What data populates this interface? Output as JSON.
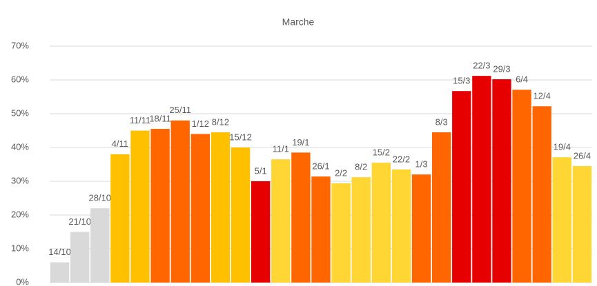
{
  "chart_data": {
    "type": "bar",
    "title": "Marche",
    "categories": [
      "14/10",
      "21/10",
      "28/10",
      "4/11",
      "11/11",
      "18/11",
      "25/11",
      "1/12",
      "8/12",
      "15/12",
      "5/1",
      "11/1",
      "19/1",
      "26/1",
      "2/2",
      "8/2",
      "15/2",
      "22/2",
      "1/3",
      "8/3",
      "15/3",
      "22/3",
      "29/3",
      "6/4",
      "12/4",
      "19/4",
      "26/4"
    ],
    "values": [
      6,
      15,
      22,
      38,
      45,
      45.5,
      48,
      44,
      44.5,
      40,
      30,
      36.5,
      38.5,
      31.4,
      29.4,
      31.2,
      35.5,
      33.5,
      32,
      44.5,
      56.7,
      61.2,
      60.2,
      57.1,
      52.2,
      37.1,
      34.5
    ],
    "colors": [
      "#d9d9d9",
      "#d9d9d9",
      "#d9d9d9",
      "#ffc000",
      "#ffc000",
      "#ff6600",
      "#ff6600",
      "#ff6600",
      "#ffc000",
      "#ffc000",
      "#e60000",
      "#ffd633",
      "#ff6600",
      "#ff6600",
      "#ffd633",
      "#ffd633",
      "#ffd633",
      "#ffd633",
      "#ff6600",
      "#ff6600",
      "#e60000",
      "#e60000",
      "#e60000",
      "#ff6600",
      "#ff6600",
      "#ffd633",
      "#ffd633"
    ],
    "ylim": [
      0,
      70
    ],
    "yticks": [
      {
        "value": 0,
        "label": "0%"
      },
      {
        "value": 10,
        "label": "10%"
      },
      {
        "value": 20,
        "label": "20%"
      },
      {
        "value": 30,
        "label": "30%"
      },
      {
        "value": 40,
        "label": "40%"
      },
      {
        "value": 50,
        "label": "50%"
      },
      {
        "value": 60,
        "label": "60%"
      },
      {
        "value": 70,
        "label": "70%"
      }
    ],
    "grid": true
  }
}
